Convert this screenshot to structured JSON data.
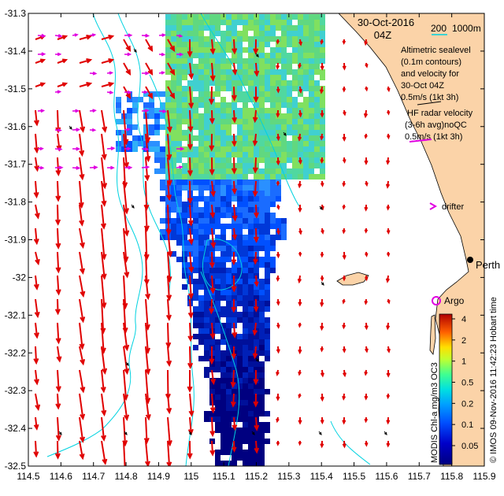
{
  "map": {
    "date": "30-Oct-2016",
    "time": "04Z",
    "scale_bar_label": "200",
    "depth_label": "1000m",
    "legend_altimetry": [
      "Altimetric sealevel",
      "(0.1m contours)",
      "and velocity for",
      "30-Oct 04Z",
      "0.5m/s (1kt 3h)"
    ],
    "legend_radar": [
      "HF radar velocity",
      "(3-6h avg)noQC",
      "0.5m/s (1kt 3h)"
    ],
    "drifter_label": "drifter",
    "argo_label": "Argo",
    "city_label": "Perth",
    "credit": "© IMOS 09-Nov-2016 11:42:23 Hobart time",
    "colorbar_title": "MODIS Chl-a mg/m3 OC3",
    "colorbar_ticks": [
      "4",
      "2",
      "1",
      "0.5",
      "0.2",
      "0.1",
      "0.05"
    ],
    "x_ticks": [
      "114.5",
      "114.6",
      "114.7",
      "114.8",
      "114.9",
      "115",
      "115.1",
      "115.2",
      "115.3",
      "115.4",
      "115.5",
      "115.6",
      "115.7",
      "115.8",
      "115.9"
    ],
    "y_ticks": [
      "-31.3",
      "-31.4",
      "-31.5",
      "-31.6",
      "-31.7",
      "-31.8",
      "-31.9",
      "-32",
      "-32.1",
      "-32.2",
      "-32.3",
      "-32.4",
      "-32.5"
    ],
    "colors": {
      "land": "#fbd3a8",
      "contour": "#00d2e0",
      "altimetry_arrow": "#e00000",
      "radar_arrow": "#e000e0",
      "argo": "#e000e0"
    }
  }
}
